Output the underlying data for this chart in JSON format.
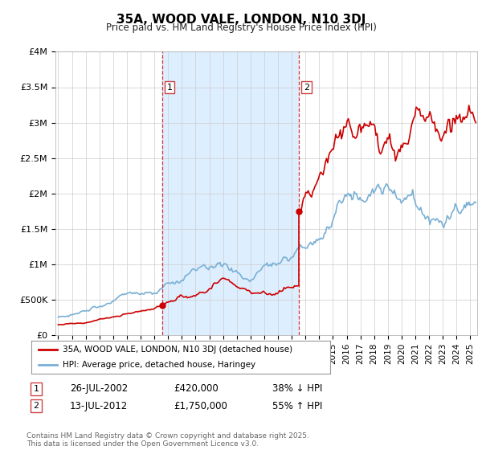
{
  "title": "35A, WOOD VALE, LONDON, N10 3DJ",
  "subtitle": "Price paid vs. HM Land Registry's House Price Index (HPI)",
  "ylim": [
    0,
    4000000
  ],
  "yticks": [
    0,
    500000,
    1000000,
    1500000,
    2000000,
    2500000,
    3000000,
    3500000,
    4000000
  ],
  "ytick_labels": [
    "£0",
    "£500K",
    "£1M",
    "£1.5M",
    "£2M",
    "£2.5M",
    "£3M",
    "£3.5M",
    "£4M"
  ],
  "bg_color": "#ffffff",
  "plot_bg_color": "#ffffff",
  "shade_color": "#ddeeff",
  "line1_color": "#cc0000",
  "line2_color": "#7ab0d4",
  "vline_color": "#cc0000",
  "marker1_x": 2002.55,
  "marker2_x": 2012.53,
  "transaction1_date": "26-JUL-2002",
  "transaction1_price": "£420,000",
  "transaction1_hpi": "38% ↓ HPI",
  "transaction2_date": "13-JUL-2012",
  "transaction2_price": "£1,750,000",
  "transaction2_hpi": "55% ↑ HPI",
  "legend_label1": "35A, WOOD VALE, LONDON, N10 3DJ (detached house)",
  "legend_label2": "HPI: Average price, detached house, Haringey",
  "footer": "Contains HM Land Registry data © Crown copyright and database right 2025.\nThis data is licensed under the Open Government Licence v3.0.",
  "xlim_min": 1994.8,
  "xlim_max": 2025.5
}
